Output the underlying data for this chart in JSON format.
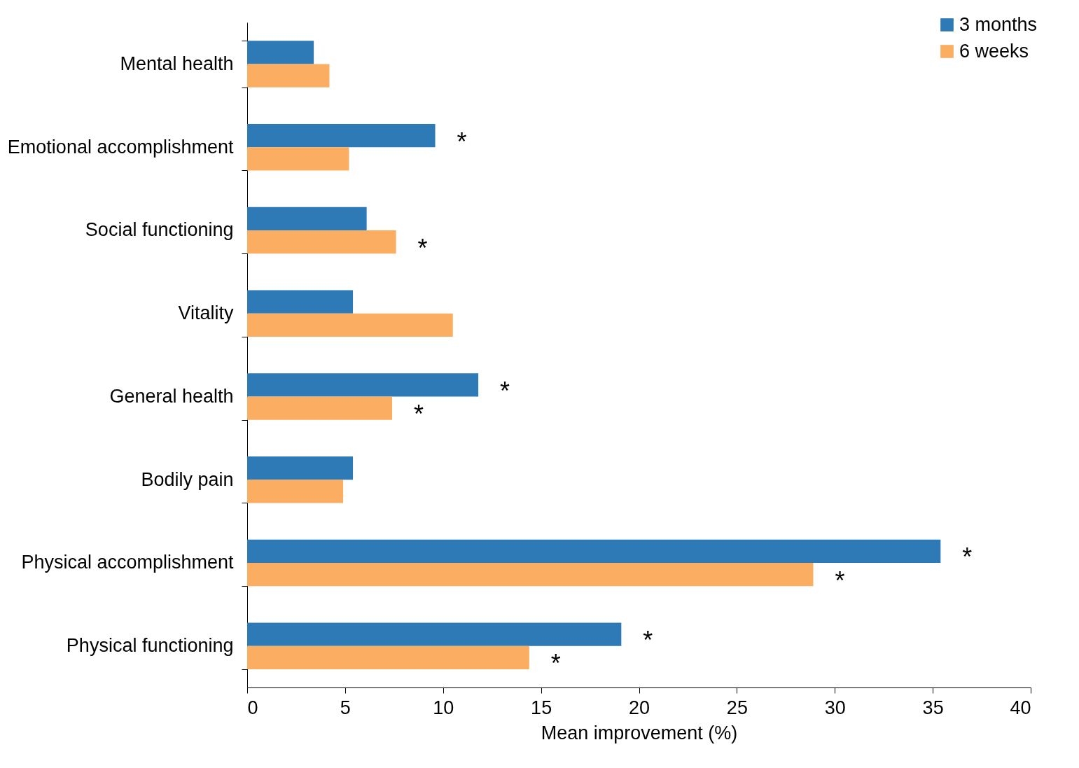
{
  "chart_data": {
    "type": "bar",
    "orientation": "horizontal",
    "xlabel": "Mean improvement (%)",
    "categories": [
      "Mental health",
      "Emotional accomplishment",
      "Social functioning",
      "Vitality",
      "General health",
      "Bodily pain",
      "Physical accomplishment",
      "Physical functioning"
    ],
    "series": [
      {
        "name": "3 months",
        "color": "#2e7ab6",
        "values": [
          3.4,
          9.6,
          6.1,
          5.4,
          11.8,
          5.4,
          35.4,
          19.1
        ]
      },
      {
        "name": "6 weeks",
        "color": "#fbae62",
        "values": [
          4.2,
          5.2,
          7.6,
          10.5,
          7.4,
          4.9,
          28.9,
          14.4
        ]
      }
    ],
    "xlim": [
      0,
      40
    ],
    "xticks": [
      0,
      5,
      10,
      15,
      20,
      25,
      30,
      35,
      40
    ],
    "grid": false,
    "legend": "top right",
    "annotations": [
      {
        "text": "*",
        "x": 9.6,
        "y": "Emotional accomplishment"
      },
      {
        "text": "*",
        "x": 7.6,
        "y": "Social functioning"
      },
      {
        "text": "*",
        "x": 11.8,
        "y": "General health"
      },
      {
        "text": "*",
        "x": 7.4,
        "y": "General health"
      },
      {
        "text": "*",
        "x": 35.4,
        "y": "Physical accomplishment"
      },
      {
        "text": "*",
        "x": 28.9,
        "y": "Physical accomplishment"
      },
      {
        "text": "*",
        "x": 19.1,
        "y": "Physical functioning"
      },
      {
        "text": "*",
        "x": 14.4,
        "y": "Physical functioning"
      }
    ]
  }
}
